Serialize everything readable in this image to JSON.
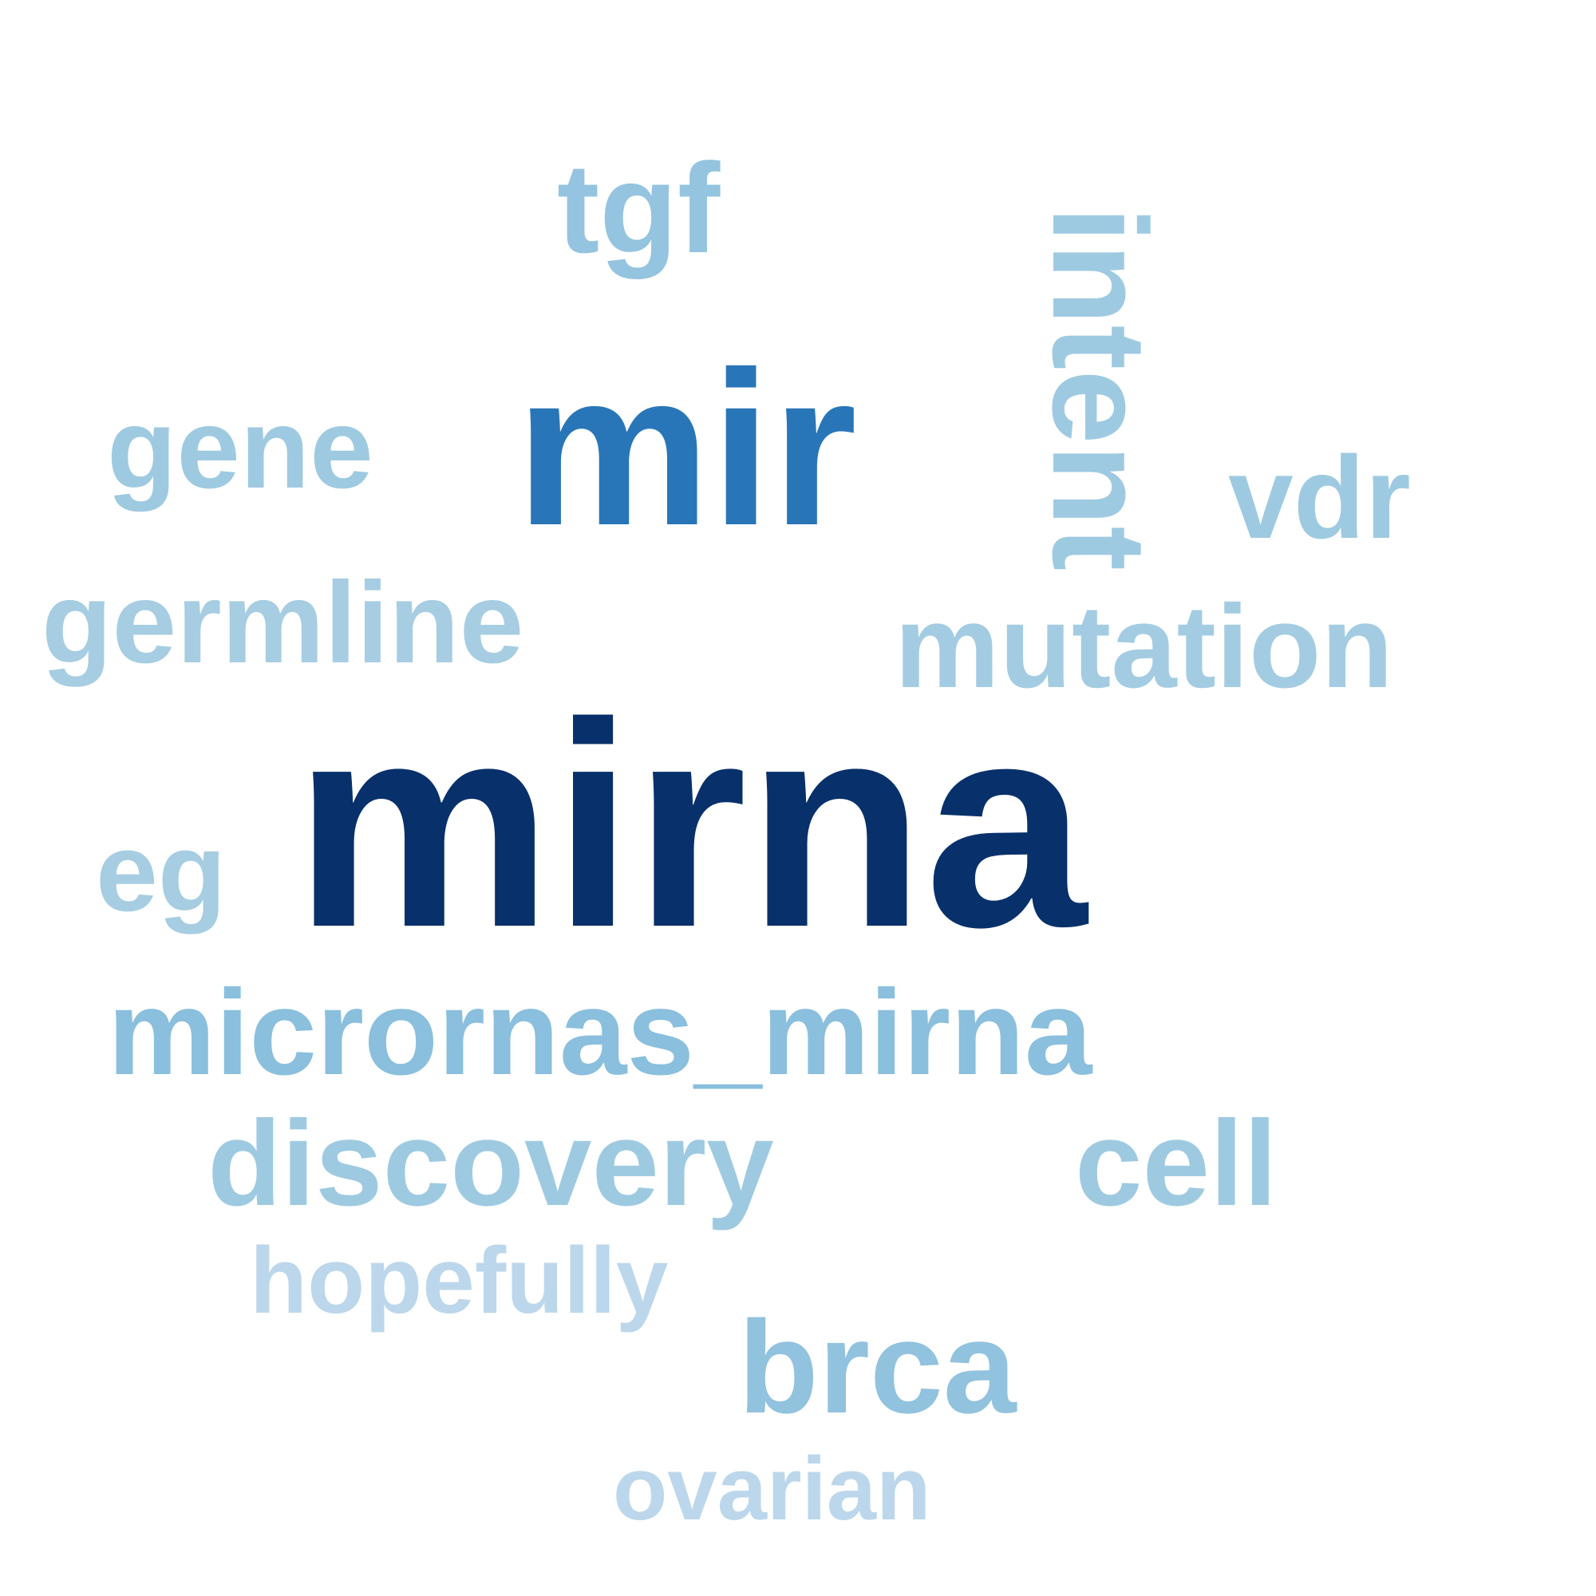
{
  "background": "#ffffff",
  "words": [
    {
      "id": "mirna",
      "text": "mirna",
      "color": "#08306b"
    },
    {
      "id": "mir",
      "text": "mir",
      "color": "#2876b8"
    },
    {
      "id": "micrornas-mirna",
      "text": "micrornas_mirna",
      "color": "#8abfdd"
    },
    {
      "id": "tgf",
      "text": "tgf",
      "color": "#94c4df"
    },
    {
      "id": "intent",
      "text": "intent",
      "color": "#9ecae1"
    },
    {
      "id": "gene",
      "text": "gene",
      "color": "#9ecae1"
    },
    {
      "id": "vdr",
      "text": "vdr",
      "color": "#9ecae1"
    },
    {
      "id": "germline",
      "text": "germline",
      "color": "#a6cde2"
    },
    {
      "id": "mutation",
      "text": "mutation",
      "color": "#a3cce2"
    },
    {
      "id": "eg",
      "text": "eg",
      "color": "#a6cde2"
    },
    {
      "id": "discovery",
      "text": "discovery",
      "color": "#9ecae1"
    },
    {
      "id": "cell",
      "text": "cell",
      "color": "#9ecae1"
    },
    {
      "id": "hopefully",
      "text": "hopefully",
      "color": "#bcd7eb"
    },
    {
      "id": "brca",
      "text": "brca",
      "color": "#91c2de"
    },
    {
      "id": "ovarian",
      "text": "ovarian",
      "color": "#bcd7eb"
    }
  ]
}
